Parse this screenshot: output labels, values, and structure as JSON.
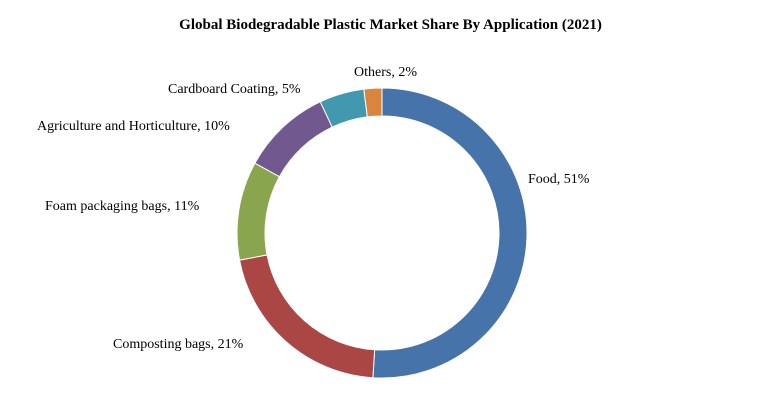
{
  "chart_data": {
    "type": "pie",
    "variant": "donut",
    "title": "Global Biodegradable Plastic Market Share By Application (2021)",
    "slices": [
      {
        "label": "Food, 51%",
        "category": "Food",
        "value": 51,
        "color": "#4673A9"
      },
      {
        "label": "Composting bags, 21%",
        "category": "Composting bags",
        "value": 21,
        "color": "#AA4643"
      },
      {
        "label": "Foam packaging bags, 11%",
        "category": "Foam packaging bags",
        "value": 11,
        "color": "#89A54E"
      },
      {
        "label": "Agriculture and Horticulture, 10%",
        "category": "Agriculture and Horticulture",
        "value": 10,
        "color": "#71588F"
      },
      {
        "label": "Cardboard Coating, 5%",
        "category": "Cardboard Coating",
        "value": 5,
        "color": "#4198AF"
      },
      {
        "label": "Others, 2%",
        "category": "Others",
        "value": 2,
        "color": "#DB843D"
      }
    ],
    "legend": "none"
  }
}
